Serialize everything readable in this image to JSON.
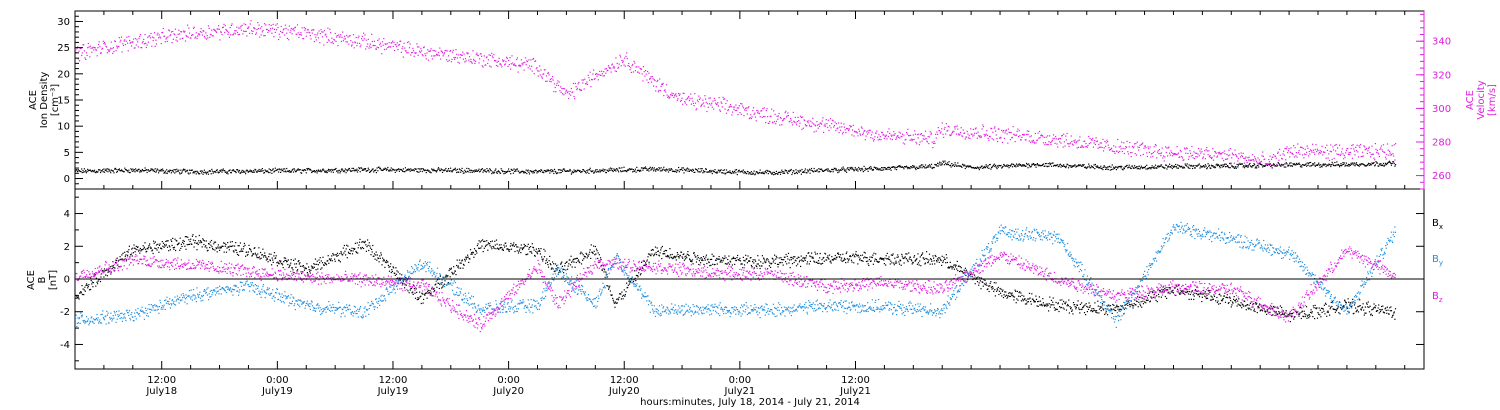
{
  "chart_data": [
    {
      "type": "scatter",
      "panel": "top",
      "ylabel_left": [
        "ACE",
        "Ion Density",
        "[cm⁻³]"
      ],
      "ylabel_right": [
        "ACE",
        "Velocity",
        "[km/s]"
      ],
      "ylim_left": [
        -2,
        32
      ],
      "yticks_left": [
        0,
        5,
        10,
        15,
        20,
        25,
        30
      ],
      "ylim_right": [
        252,
        358
      ],
      "yticks_right": [
        260,
        280,
        300,
        320,
        340
      ],
      "right_axis_color": "#e020e0",
      "series": [
        {
          "axis": "left",
          "color": "#000000",
          "x": [
            0,
            6,
            12,
            18,
            24,
            30,
            36,
            42,
            48,
            54,
            60,
            66,
            72,
            78,
            84,
            89,
            90,
            93,
            96,
            100,
            102,
            108,
            114,
            120,
            126,
            132,
            137
          ],
          "y": [
            1.5,
            1.7,
            1.4,
            1.5,
            1.6,
            1.8,
            1.7,
            1.6,
            1.4,
            1.6,
            1.9,
            1.5,
            1.2,
            1.7,
            2.0,
            2.4,
            3.0,
            2.2,
            2.4,
            2.8,
            2.6,
            2.2,
            2.4,
            2.5,
            2.7,
            2.8,
            3.0
          ]
        },
        {
          "axis": "right",
          "color": "#e020e0",
          "x": [
            0,
            6,
            12,
            18,
            24,
            30,
            36,
            42,
            48,
            51,
            54,
            57,
            60,
            63,
            66,
            72,
            78,
            84,
            89,
            90,
            96,
            102,
            108,
            114,
            120,
            124,
            126,
            132,
            137
          ],
          "y": [
            333,
            340,
            345,
            348,
            345,
            340,
            334,
            330,
            325,
            308,
            320,
            330,
            316,
            305,
            303,
            296,
            290,
            284,
            282,
            288,
            285,
            282,
            277,
            274,
            272,
            268,
            275,
            274,
            275
          ]
        }
      ]
    },
    {
      "type": "scatter",
      "panel": "bottom",
      "ylabel": [
        "ACE",
        "B",
        "[nT]"
      ],
      "ylim": [
        -5.5,
        5.5
      ],
      "yticks": [
        -4,
        -2,
        0,
        2,
        4
      ],
      "zero_line": true,
      "xlim": [
        0,
        140
      ],
      "xaxis_start": "July18 03:00",
      "xticks": [
        {
          "x": 9,
          "time": "12:00",
          "date": "July18"
        },
        {
          "x": 21,
          "time": "0:00",
          "date": "July19"
        },
        {
          "x": 33,
          "time": "12:00",
          "date": "July19"
        },
        {
          "x": 45,
          "time": "0:00",
          "date": "July20"
        },
        {
          "x": 57,
          "time": "12:00",
          "date": "July20"
        },
        {
          "x": 69,
          "time": "0:00",
          "date": "July21"
        },
        {
          "x": 81,
          "time": "12:00",
          "date": "July21"
        }
      ],
      "xlabel": "hours:minutes, July 18, 2014 - July 21, 2014",
      "series": [
        {
          "name": "Bx",
          "color": "#000000",
          "x": [
            0,
            6,
            12,
            18,
            24,
            30,
            36,
            42,
            48,
            50,
            54,
            56,
            60,
            66,
            72,
            78,
            84,
            90,
            96,
            102,
            108,
            114,
            120,
            126,
            132,
            137
          ],
          "y": [
            -1.0,
            1.8,
            2.3,
            1.8,
            0.6,
            2.2,
            -1.2,
            2.1,
            1.8,
            0.5,
            1.9,
            -1.5,
            1.7,
            1.2,
            1.1,
            1.3,
            1.3,
            1.2,
            -0.8,
            -1.6,
            -1.8,
            -0.6,
            -1.3,
            -2.2,
            -1.6,
            -2.0
          ]
        },
        {
          "name": "By",
          "color": "#2090e0",
          "x": [
            0,
            6,
            12,
            18,
            24,
            30,
            36,
            42,
            48,
            50,
            54,
            56,
            60,
            66,
            72,
            78,
            84,
            90,
            96,
            102,
            108,
            114,
            120,
            126,
            132,
            137
          ],
          "y": [
            -2.5,
            -2.2,
            -1.0,
            -0.4,
            -1.6,
            -2.0,
            1.0,
            -1.8,
            -1.6,
            0.6,
            -1.5,
            1.5,
            -1.9,
            -1.8,
            -1.9,
            -1.6,
            -1.7,
            -1.9,
            2.9,
            2.6,
            -2.5,
            3.2,
            2.5,
            1.6,
            -2.0,
            3.0
          ]
        },
        {
          "name": "Bz",
          "color": "#e020e0",
          "x": [
            0,
            6,
            12,
            18,
            24,
            30,
            36,
            42,
            48,
            50,
            54,
            56,
            60,
            66,
            72,
            78,
            84,
            90,
            96,
            102,
            108,
            114,
            120,
            126,
            132,
            137
          ],
          "y": [
            0.2,
            1.2,
            0.9,
            0.5,
            0.1,
            0.0,
            -0.4,
            -2.8,
            0.8,
            -1.5,
            1.0,
            0.9,
            0.8,
            0.4,
            0.3,
            -0.4,
            -0.2,
            -0.6,
            1.5,
            0.0,
            -1.0,
            -0.5,
            -0.6,
            -2.3,
            1.8,
            0.2
          ]
        }
      ]
    }
  ],
  "legend": {
    "bx_base": "B",
    "bx_sub": "x",
    "by_base": "B",
    "by_sub": "y",
    "bz_base": "B",
    "bz_sub": "z"
  }
}
